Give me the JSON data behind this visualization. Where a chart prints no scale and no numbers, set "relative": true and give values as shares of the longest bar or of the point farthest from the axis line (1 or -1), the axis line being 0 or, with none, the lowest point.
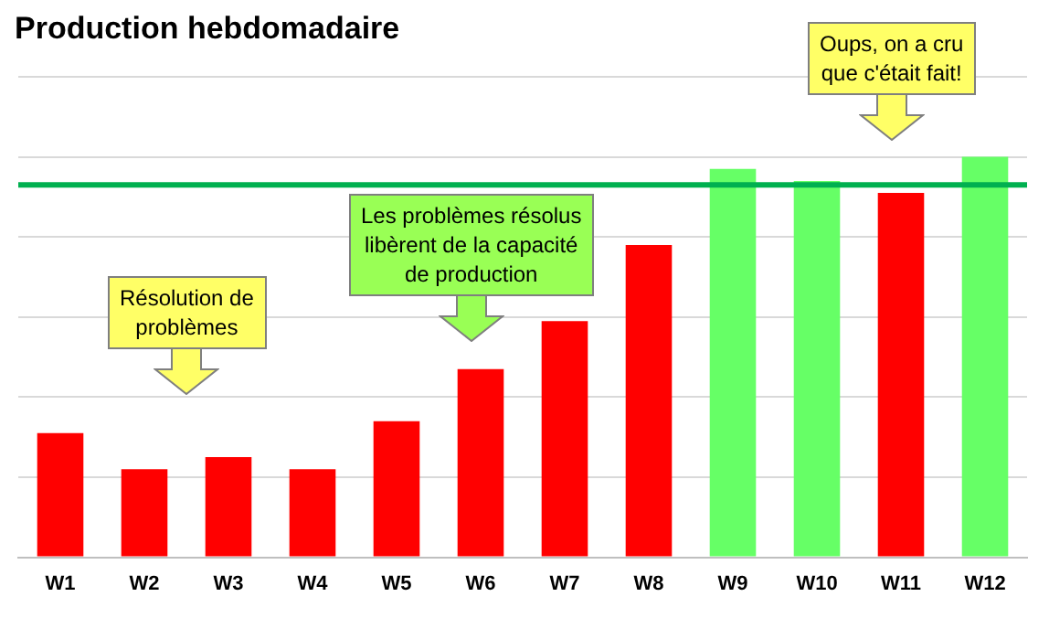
{
  "chart_data": {
    "type": "bar",
    "title": "Production hebdomadaire",
    "relative": true,
    "categories": [
      "W1",
      "W2",
      "W3",
      "W4",
      "W5",
      "W6",
      "W7",
      "W8",
      "W9",
      "W10",
      "W11",
      "W12"
    ],
    "values": [
      0.31,
      0.22,
      0.25,
      0.22,
      0.34,
      0.47,
      0.59,
      0.78,
      0.97,
      0.94,
      0.91,
      1
    ],
    "colors": [
      "#ff0000",
      "#ff0000",
      "#ff0000",
      "#ff0000",
      "#ff0000",
      "#ff0000",
      "#ff0000",
      "#ff0000",
      "#66ff66",
      "#66ff66",
      "#ff0000",
      "#66ff66"
    ],
    "ref_lines": [
      {
        "axis": "y",
        "value": 0.93,
        "color": "#00b050"
      }
    ],
    "annotations": [
      "Résolution de\nproblèmes",
      "Les problèmes résolus\nlibèrent de la capacité\nde production",
      "Oups, on a cru\nque c'était fait!"
    ],
    "grid": "y",
    "legend": false
  }
}
